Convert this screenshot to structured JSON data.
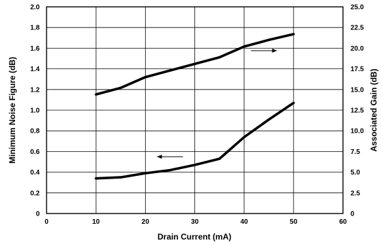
{
  "chart_data": {
    "type": "line",
    "title": "",
    "xlabel": "Drain Current (mA)",
    "ylabel": "Minimum Noise Figure (dB)",
    "y2label": "Associated Gain (dB)",
    "xlim": [
      0,
      60
    ],
    "ylim": [
      0,
      2.0
    ],
    "y2lim": [
      0,
      25.0
    ],
    "x_ticks": [
      "0",
      "10",
      "20",
      "30",
      "40",
      "50",
      "60"
    ],
    "y_ticks": [
      "0",
      "0.2",
      "0.4",
      "0.6",
      "0.8",
      "1.0",
      "1.2",
      "1.4",
      "1.6",
      "1.8",
      "2.0"
    ],
    "y2_ticks": [
      "0",
      "2.5",
      "5.0",
      "7.5",
      "10.0",
      "12.5",
      "15.0",
      "17.5",
      "20.0",
      "22.5",
      "25.0"
    ],
    "grid": true,
    "series": [
      {
        "axis": "left",
        "arrow_direction": "left",
        "x": [
          10,
          15,
          20,
          25,
          30,
          35,
          40,
          45,
          50
        ],
        "values": [
          0.34,
          0.35,
          0.39,
          0.42,
          0.47,
          0.53,
          0.74,
          0.91,
          1.07
        ]
      },
      {
        "axis": "right",
        "arrow_direction": "right",
        "x": [
          10,
          15,
          20,
          25,
          30,
          35,
          40,
          45,
          50
        ],
        "values": [
          14.4,
          15.2,
          16.5,
          17.3,
          18.1,
          18.9,
          20.2,
          21.0,
          21.7
        ]
      }
    ]
  }
}
